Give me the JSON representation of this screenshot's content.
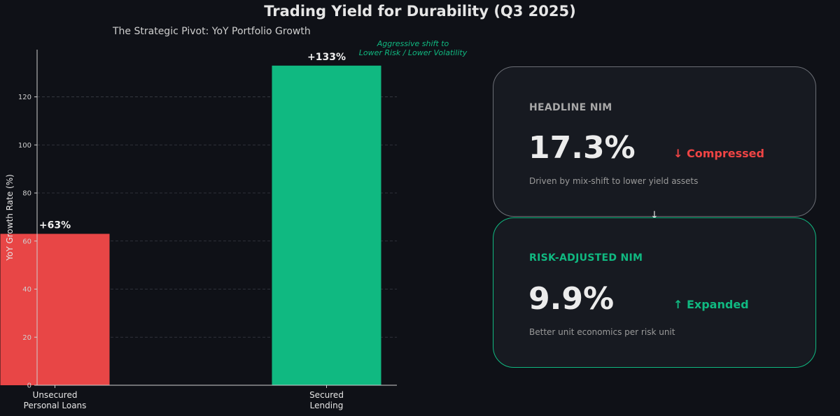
{
  "chart_data": {
    "type": "bar",
    "title": "Trading Yield for Durability (Q3 2025)",
    "subtitle": "The Strategic Pivot: YoY Portfolio Growth",
    "categories": [
      "Unsecured\nPersonal Loans",
      "Secured\nLending"
    ],
    "values": [
      63,
      133
    ],
    "value_labels": [
      "+63%",
      "+133%"
    ],
    "colors": [
      "#e84646",
      "#10b981"
    ],
    "xlabel": "",
    "ylabel": "YoY Growth Rate (%)",
    "ylim": [
      0,
      139.65
    ],
    "yticks": [
      0,
      20,
      40,
      60,
      80,
      100,
      120
    ],
    "grid": "y",
    "annotation": "Aggressive shift to\nLower Risk / Lower Volatility"
  },
  "cards": {
    "headline": {
      "label": "HEADLINE NIM",
      "value": "17.3%",
      "delta": "↓ Compressed",
      "description": "Driven by mix-shift to lower yield assets"
    },
    "risk_adjusted": {
      "label": "RISK-ADJUSTED NIM",
      "value": "9.9%",
      "delta": "↑ Expanded",
      "description": "Better unit economics per risk unit"
    },
    "connector": "↓"
  },
  "colors": {
    "background": "#0f1117",
    "card_background": "#171a21",
    "accent_green": "#10b981",
    "accent_red": "#ef4444"
  }
}
